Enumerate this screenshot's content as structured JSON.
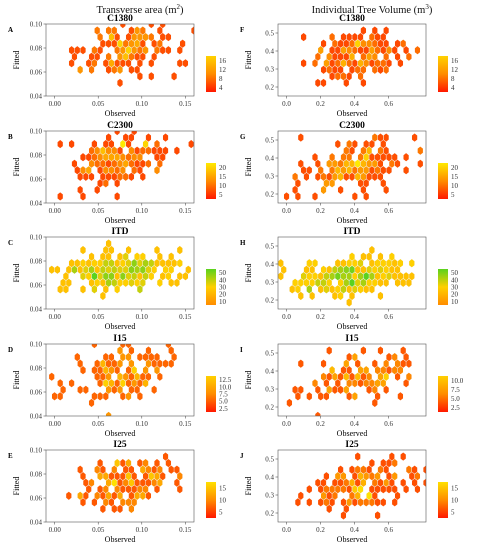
{
  "figure": {
    "columns": [
      {
        "title": "Transverse area (m",
        "title_sup": "2",
        "title_end": ")"
      },
      {
        "title": "Individual Tree Volume (m",
        "title_sup": "3",
        "title_end": ")"
      }
    ]
  },
  "chart_data": [
    {
      "type": "heatmap",
      "subtype": "hexbin",
      "letter": "A",
      "title": "C1380",
      "xlabel": "Observed",
      "ylabel": "Fitted",
      "xlim": [
        -0.01,
        0.16
      ],
      "ylim": [
        0.04,
        0.1
      ],
      "xticks": [
        "0.00",
        "0.05",
        "0.10",
        "0.15"
      ],
      "yticks": [
        "0.04",
        "0.06",
        "0.08",
        "0.10"
      ],
      "center": [
        0.082,
        0.079
      ],
      "spread": [
        0.028,
        0.011
      ],
      "n": 150,
      "slope": 0.32,
      "count_range": [
        1,
        18
      ],
      "legend_ticks": [
        "16",
        "12",
        "8",
        "4"
      ],
      "colors": [
        "#ff1800",
        "#ff8c00",
        "#ffd200"
      ]
    },
    {
      "type": "heatmap",
      "subtype": "hexbin",
      "letter": "B",
      "title": "C2300",
      "xlabel": "Observed",
      "ylabel": "Fitted",
      "xlim": [
        -0.01,
        0.16
      ],
      "ylim": [
        0.04,
        0.1
      ],
      "xticks": [
        "0.00",
        "0.05",
        "0.10",
        "0.15"
      ],
      "yticks": [
        "0.04",
        "0.06",
        "0.08",
        "0.10"
      ],
      "center": [
        0.078,
        0.076
      ],
      "spread": [
        0.027,
        0.011
      ],
      "n": 165,
      "slope": 0.35,
      "count_range": [
        1,
        22
      ],
      "legend_ticks": [
        "20",
        "15",
        "10",
        "5"
      ],
      "colors": [
        "#ff1800",
        "#ff8c00",
        "#ffea00"
      ]
    },
    {
      "type": "heatmap",
      "subtype": "hexbin",
      "letter": "C",
      "title": "ITD",
      "xlabel": "Observed",
      "ylabel": "Fitted",
      "xlim": [
        -0.01,
        0.16
      ],
      "ylim": [
        0.04,
        0.1
      ],
      "xticks": [
        "0.00",
        "0.05",
        "0.10",
        "0.15"
      ],
      "yticks": [
        "0.04",
        "0.06",
        "0.08",
        "0.10"
      ],
      "center": [
        0.075,
        0.071
      ],
      "spread": [
        0.034,
        0.008
      ],
      "n": 230,
      "slope": 0.08,
      "count_range": [
        1,
        60
      ],
      "legend_ticks": [
        "50",
        "40",
        "30",
        "20",
        "10"
      ],
      "colors": [
        "#ff8c00",
        "#ffd000",
        "#5ad21e"
      ],
      "min_fill": 0.25
    },
    {
      "type": "heatmap",
      "subtype": "hexbin",
      "letter": "D",
      "title": "I15",
      "xlabel": "Observed",
      "ylabel": "Fitted",
      "xlim": [
        -0.01,
        0.16
      ],
      "ylim": [
        0.04,
        0.1
      ],
      "xticks": [
        "0.00",
        "0.05",
        "0.10",
        "0.15"
      ],
      "yticks": [
        "0.04",
        "0.06",
        "0.08",
        "0.10"
      ],
      "center": [
        0.076,
        0.075
      ],
      "spread": [
        0.028,
        0.011
      ],
      "n": 120,
      "slope": 0.28,
      "count_range": [
        1,
        13
      ],
      "legend_ticks": [
        "12.5",
        "10.0",
        "7.5",
        "5.0",
        "2.5"
      ],
      "colors": [
        "#ff1800",
        "#ff8c00",
        "#ffd000"
      ]
    },
    {
      "type": "heatmap",
      "subtype": "hexbin",
      "letter": "E",
      "title": "I25",
      "xlabel": "Observed",
      "ylabel": "Fitted",
      "xlim": [
        -0.01,
        0.16
      ],
      "ylim": [
        0.04,
        0.1
      ],
      "xticks": [
        "0.00",
        "0.05",
        "0.10",
        "0.15"
      ],
      "yticks": [
        "0.04",
        "0.06",
        "0.08",
        "0.10"
      ],
      "center": [
        0.078,
        0.072
      ],
      "spread": [
        0.027,
        0.01
      ],
      "n": 140,
      "slope": 0.3,
      "count_range": [
        1,
        18
      ],
      "legend_ticks": [
        "15",
        "10",
        "5"
      ],
      "colors": [
        "#ff1800",
        "#ff8c00",
        "#ffe000"
      ]
    },
    {
      "type": "heatmap",
      "subtype": "hexbin",
      "letter": "F",
      "title": "C1380",
      "xlabel": "Observed",
      "ylabel": "Fitted",
      "xlim": [
        -0.05,
        0.82
      ],
      "ylim": [
        0.15,
        0.55
      ],
      "xticks": [
        "0.0",
        "0.2",
        "0.4",
        "0.6"
      ],
      "yticks": [
        "0.2",
        "0.3",
        "0.4",
        "0.5"
      ],
      "center": [
        0.42,
        0.37
      ],
      "spread": [
        0.15,
        0.072
      ],
      "n": 160,
      "slope": 0.4,
      "count_range": [
        1,
        18
      ],
      "legend_ticks": [
        "16",
        "12",
        "8",
        "4"
      ],
      "colors": [
        "#ff1800",
        "#ff8c00",
        "#ffd200"
      ]
    },
    {
      "type": "heatmap",
      "subtype": "hexbin",
      "letter": "G",
      "title": "C2300",
      "xlabel": "Observed",
      "ylabel": "Fitted",
      "xlim": [
        -0.05,
        0.82
      ],
      "ylim": [
        0.15,
        0.55
      ],
      "xticks": [
        "0.0",
        "0.2",
        "0.4",
        "0.6"
      ],
      "yticks": [
        "0.2",
        "0.3",
        "0.4",
        "0.5"
      ],
      "center": [
        0.4,
        0.36
      ],
      "spread": [
        0.15,
        0.075
      ],
      "n": 170,
      "slope": 0.42,
      "count_range": [
        1,
        22
      ],
      "legend_ticks": [
        "20",
        "15",
        "10",
        "5"
      ],
      "colors": [
        "#ff1800",
        "#ff8c00",
        "#ffea00"
      ]
    },
    {
      "type": "heatmap",
      "subtype": "hexbin",
      "letter": "H",
      "title": "ITD",
      "xlabel": "Observed",
      "ylabel": "Fitted",
      "xlim": [
        -0.05,
        0.82
      ],
      "ylim": [
        0.15,
        0.55
      ],
      "xticks": [
        "0.0",
        "0.2",
        "0.4",
        "0.6"
      ],
      "yticks": [
        "0.2",
        "0.3",
        "0.4",
        "0.5"
      ],
      "center": [
        0.36,
        0.33
      ],
      "spread": [
        0.17,
        0.045
      ],
      "n": 230,
      "slope": 0.3,
      "count_range": [
        1,
        60
      ],
      "legend_ticks": [
        "50",
        "40",
        "30",
        "20",
        "10"
      ],
      "colors": [
        "#ff8c00",
        "#ffd000",
        "#5ad21e"
      ],
      "min_fill": 0.25
    },
    {
      "type": "heatmap",
      "subtype": "hexbin",
      "letter": "I",
      "title": "I15",
      "xlabel": "Observed",
      "ylabel": "Fitted",
      "xlim": [
        -0.05,
        0.82
      ],
      "ylim": [
        0.15,
        0.55
      ],
      "xticks": [
        "0.0",
        "0.2",
        "0.4",
        "0.6"
      ],
      "yticks": [
        "0.2",
        "0.3",
        "0.4",
        "0.5"
      ],
      "center": [
        0.42,
        0.37
      ],
      "spread": [
        0.15,
        0.075
      ],
      "n": 125,
      "slope": 0.38,
      "count_range": [
        1,
        11
      ],
      "legend_ticks": [
        "10.0",
        "7.5",
        "5.0",
        "2.5"
      ],
      "colors": [
        "#ff1800",
        "#ff8c00",
        "#ffd000"
      ]
    },
    {
      "type": "heatmap",
      "subtype": "hexbin",
      "letter": "J",
      "title": "I25",
      "xlabel": "Observed",
      "ylabel": "Fitted",
      "xlim": [
        -0.05,
        0.82
      ],
      "ylim": [
        0.15,
        0.55
      ],
      "xticks": [
        "0.0",
        "0.2",
        "0.4",
        "0.6"
      ],
      "yticks": [
        "0.2",
        "0.3",
        "0.4",
        "0.5"
      ],
      "center": [
        0.42,
        0.36
      ],
      "spread": [
        0.15,
        0.07
      ],
      "n": 150,
      "slope": 0.4,
      "count_range": [
        1,
        18
      ],
      "legend_ticks": [
        "15",
        "10",
        "5"
      ],
      "colors": [
        "#ff1800",
        "#ff8c00",
        "#ffe000"
      ]
    }
  ]
}
